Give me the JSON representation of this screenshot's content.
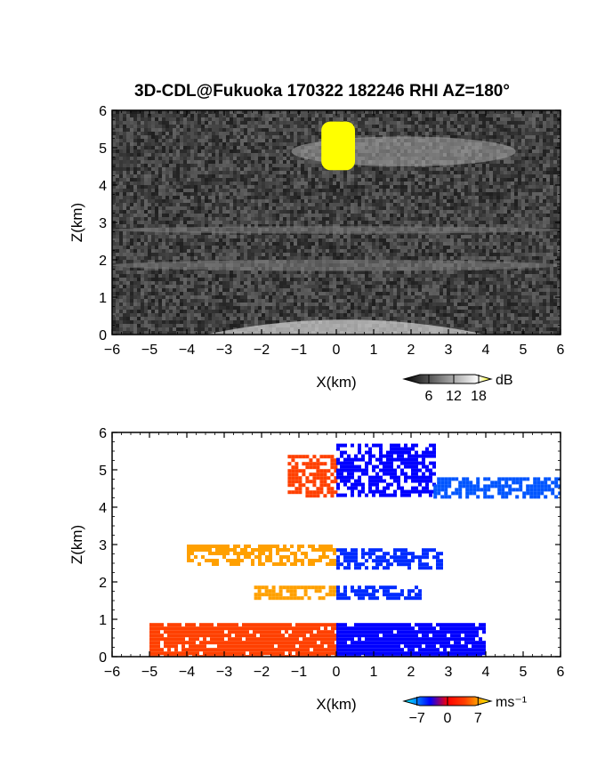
{
  "figure": {
    "title": "3D-CDL@Fukuoka 170322 182246 RHI AZ=180°"
  },
  "chart_data": [
    {
      "type": "heatmap",
      "panel": "top",
      "xlabel": "X(km)",
      "ylabel": "Z(km)",
      "xlim": [
        -6,
        6
      ],
      "ylim": [
        0,
        6
      ],
      "xticks": [
        "−6",
        "−5",
        "−4",
        "−3",
        "−2",
        "−1",
        "0",
        "1",
        "2",
        "3",
        "4",
        "5",
        "6"
      ],
      "yticks": [
        "0",
        "1",
        "2",
        "3",
        "4",
        "5",
        "6"
      ],
      "colorbar": {
        "unit": "dB",
        "ticks": [
          "6",
          "12",
          "18"
        ],
        "tick_values": [
          6,
          12,
          18
        ],
        "range": [
          0,
          21
        ],
        "colors": [
          "#000000",
          "#ffffff",
          "#ffff00"
        ]
      },
      "features": [
        {
          "kind": "cloud-layer",
          "x": [
            -1.2,
            4.8
          ],
          "z": [
            4.5,
            5.3
          ],
          "intensity_db": 12
        },
        {
          "kind": "strong-echo",
          "x": [
            -0.4,
            0.5
          ],
          "z": [
            4.4,
            5.7
          ],
          "intensity_db": 21
        },
        {
          "kind": "cloud-layer",
          "x": [
            -6,
            6
          ],
          "z": [
            2.7,
            2.9
          ],
          "intensity_db": 9
        },
        {
          "kind": "cloud-layer",
          "x": [
            -6,
            6
          ],
          "z": [
            1.7,
            2.0
          ],
          "intensity_db": 9
        },
        {
          "kind": "near-range-clutter",
          "x": [
            -3.5,
            4.0
          ],
          "z": [
            0,
            0.8
          ],
          "intensity_db": 15
        }
      ]
    },
    {
      "type": "heatmap",
      "panel": "bottom",
      "xlabel": "X(km)",
      "ylabel": "Z(km)",
      "xlim": [
        -6,
        6
      ],
      "ylim": [
        0,
        6
      ],
      "xticks": [
        "−6",
        "−5",
        "−4",
        "−3",
        "−2",
        "−1",
        "0",
        "1",
        "2",
        "3",
        "4",
        "5",
        "6"
      ],
      "yticks": [
        "0",
        "1",
        "2",
        "3",
        "4",
        "5",
        "6"
      ],
      "colorbar": {
        "unit": "ms⁻¹",
        "ticks": [
          "−7",
          "0",
          "7"
        ],
        "tick_values": [
          -7,
          0,
          7
        ],
        "range": [
          -10,
          10
        ],
        "colors": [
          "#00ffff",
          "#0000ff",
          "#ff0000",
          "#ffff00"
        ]
      },
      "features": [
        {
          "kind": "echo-layer",
          "x": [
            -1.3,
            0
          ],
          "z": [
            4.3,
            5.4
          ],
          "velocity_ms": 4
        },
        {
          "kind": "echo-layer",
          "x": [
            0,
            2.6
          ],
          "z": [
            4.3,
            5.7
          ],
          "velocity_ms": -4
        },
        {
          "kind": "echo-layer",
          "x": [
            2.6,
            6
          ],
          "z": [
            4.3,
            4.8
          ],
          "velocity_ms": -6
        },
        {
          "kind": "echo-layer",
          "x": [
            -4,
            0
          ],
          "z": [
            2.5,
            3.0
          ],
          "velocity_ms": 7
        },
        {
          "kind": "echo-layer",
          "x": [
            0,
            2.8
          ],
          "z": [
            2.4,
            2.9
          ],
          "velocity_ms": -5
        },
        {
          "kind": "echo-layer",
          "x": [
            -2.2,
            0
          ],
          "z": [
            1.6,
            1.9
          ],
          "velocity_ms": 7
        },
        {
          "kind": "echo-layer",
          "x": [
            0,
            2.2
          ],
          "z": [
            1.6,
            1.9
          ],
          "velocity_ms": -5
        },
        {
          "kind": "near-range-echo",
          "x": [
            -5,
            0
          ],
          "z": [
            0,
            0.9
          ],
          "velocity_ms": 4
        },
        {
          "kind": "near-range-echo",
          "x": [
            0,
            4
          ],
          "z": [
            0,
            0.9
          ],
          "velocity_ms": -4
        }
      ]
    }
  ]
}
